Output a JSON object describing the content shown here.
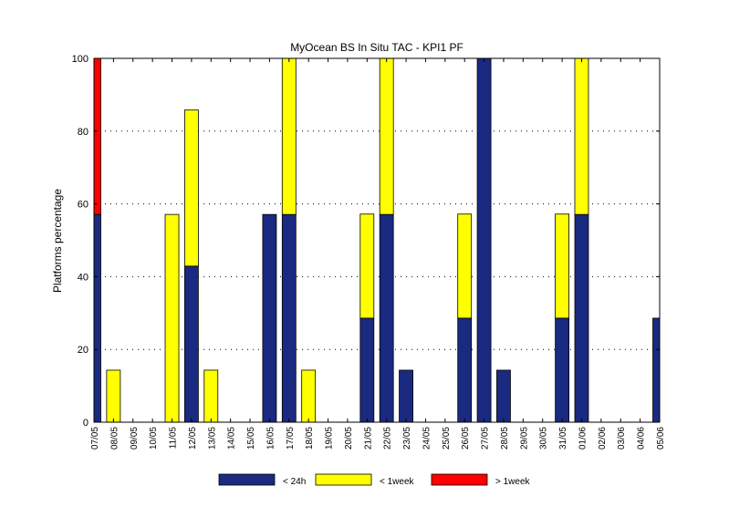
{
  "chart_data": {
    "type": "bar",
    "stacked": true,
    "title": "MyOcean  BS In Situ TAC - KPI1  PF",
    "xlabel": "",
    "ylabel": "Platforms percentage",
    "ylim": [
      0,
      100
    ],
    "yticks": [
      0,
      20,
      40,
      60,
      80,
      100
    ],
    "grid": true,
    "legend_position": "bottom",
    "categories": [
      "07/05",
      "08/05",
      "09/05",
      "10/05",
      "11/05",
      "12/05",
      "13/05",
      "14/05",
      "15/05",
      "16/05",
      "17/05",
      "18/05",
      "19/05",
      "20/05",
      "21/05",
      "22/05",
      "23/05",
      "24/05",
      "25/05",
      "26/05",
      "27/05",
      "28/05",
      "29/05",
      "30/05",
      "31/05",
      "01/06",
      "02/06",
      "03/06",
      "04/06",
      "05/06"
    ],
    "series": [
      {
        "name": "< 24h",
        "color": "#1a2a80",
        "values": [
          57.1,
          0,
          0,
          0,
          0,
          42.9,
          0,
          0,
          0,
          57.1,
          57.1,
          0,
          0,
          0,
          28.6,
          57.1,
          14.3,
          0,
          0,
          28.6,
          100,
          14.3,
          0,
          0,
          28.6,
          57.1,
          0,
          0,
          0,
          28.6
        ]
      },
      {
        "name": "< 1week",
        "color": "#ffff00",
        "values": [
          0,
          14.3,
          0,
          0,
          57.1,
          42.9,
          14.3,
          0,
          0,
          0,
          42.9,
          14.3,
          0,
          0,
          28.6,
          42.9,
          0,
          0,
          0,
          28.6,
          0,
          0,
          0,
          0,
          28.6,
          42.9,
          0,
          0,
          0,
          0
        ]
      },
      {
        "name": "> 1week",
        "color": "#ff0000",
        "values": [
          42.9,
          0,
          0,
          0,
          0,
          0,
          0,
          0,
          0,
          0,
          0,
          0,
          0,
          0,
          0,
          0,
          0,
          0,
          0,
          0,
          0,
          0,
          0,
          0,
          0,
          0,
          0,
          0,
          0,
          0
        ]
      }
    ]
  }
}
